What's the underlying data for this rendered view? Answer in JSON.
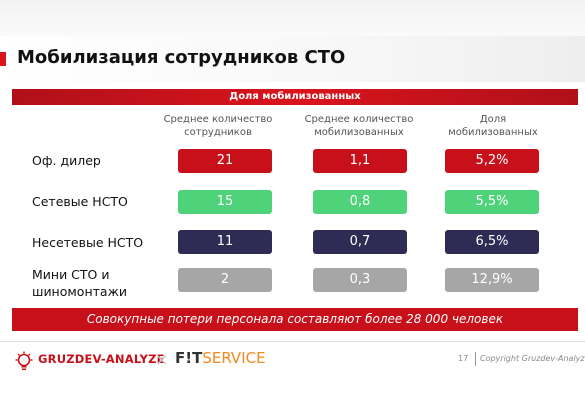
{
  "slide": {
    "title": "Мобилизация сотрудников СТО",
    "header_band": "Доля мобилизованных",
    "columns": [
      {
        "line1": "Среднее количество",
        "line2": "сотрудников"
      },
      {
        "line1": "Среднее количество",
        "line2": "мобилизованных"
      },
      {
        "line1": "Доля",
        "line2": "мобилизованных"
      }
    ],
    "rows": [
      {
        "label_line1": "Оф. дилер",
        "label_line2": "",
        "employees": "21",
        "mobilized": "1,1",
        "share": "5,2%",
        "color": "#c8101a"
      },
      {
        "label_line1": "Сетевые НСТО",
        "label_line2": "",
        "employees": "15",
        "mobilized": "0,8",
        "share": "5,5%",
        "color": "#4fd37a"
      },
      {
        "label_line1": "Несетевые НСТО",
        "label_line2": "",
        "employees": "11",
        "mobilized": "0,7",
        "share": "6,5%",
        "color": "#2e2c55"
      },
      {
        "label_line1": "Мини СТО и",
        "label_line2": "шиномонтажи",
        "employees": "2",
        "mobilized": "0,3",
        "share": "12,9%",
        "color": "#a6a6a6"
      }
    ],
    "bottom_band": "Совокупные потери персонала составляют более 28 000 человек"
  },
  "footer": {
    "logo1_icon": "lightbulb-gear-icon",
    "logo1_text": "GRUZDEV-ANALYZE",
    "separator": "×",
    "logo2_part1": "F!T",
    "logo2_part2": "SERVICE",
    "page_number": "17",
    "copyright": "Copyright Gruzdev-Analyze"
  }
}
